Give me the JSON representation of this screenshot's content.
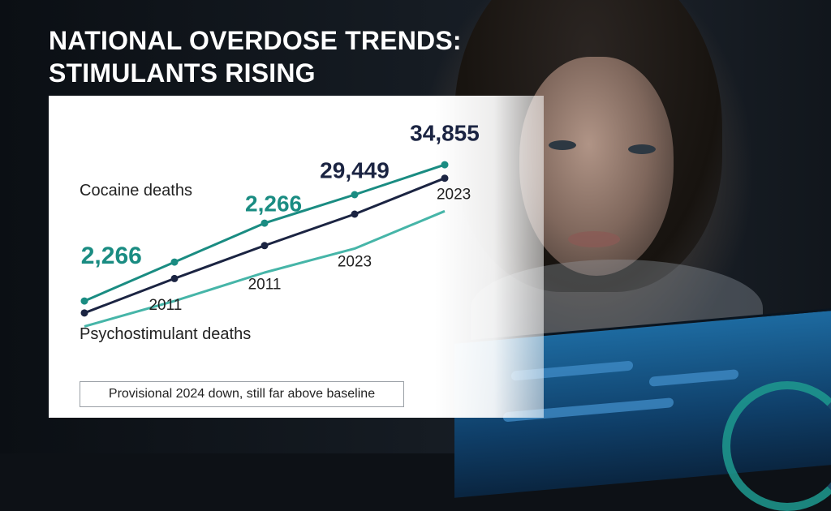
{
  "title_line1": "NATIONAL OVERDOSE TRENDS:",
  "title_line2": "STIMULANTS RISING",
  "chart_data": {
    "type": "line",
    "title": "NATIONAL OVERDOSE TRENDS: STIMULANTS RISING",
    "x": [
      0,
      1,
      2,
      3,
      4
    ],
    "series": [
      {
        "name": "Cocaine deaths",
        "color": "#1a8c82",
        "values": [
          0.0,
          0.26,
          0.52,
          0.71,
          0.91
        ],
        "markers": true
      },
      {
        "name": "",
        "color": "#1b2442",
        "values": [
          -0.08,
          0.15,
          0.37,
          0.58,
          0.82
        ],
        "markers": true
      },
      {
        "name": "Psychostimulant deaths",
        "color": "#46b5a8",
        "values": [
          -0.17,
          0.0,
          0.19,
          0.35,
          0.6
        ],
        "markers": false
      }
    ],
    "annotations": [
      {
        "text": "2,266",
        "color": "#1a8c82",
        "size": 30,
        "weight": "bold",
        "x": 0.3,
        "y": 0.25
      },
      {
        "text": "2,266",
        "color": "#1a8c82",
        "size": 28,
        "weight": "bold",
        "x": 2.1,
        "y": 0.6
      },
      {
        "text": "29,449",
        "color": "#1b2442",
        "size": 28,
        "weight": "bold",
        "x": 3.0,
        "y": 0.82
      },
      {
        "text": "34,855",
        "color": "#1b2442",
        "size": 28,
        "weight": "bold",
        "x": 4.0,
        "y": 1.07
      },
      {
        "text": "2011",
        "color": "#222222",
        "size": 19,
        "weight": "normal",
        "x": 0.9,
        "y": -0.06
      },
      {
        "text": "2011",
        "color": "#222222",
        "size": 19,
        "weight": "normal",
        "x": 2.0,
        "y": 0.08
      },
      {
        "text": "2023",
        "color": "#222222",
        "size": 19,
        "weight": "normal",
        "x": 3.0,
        "y": 0.23
      },
      {
        "text": "2023",
        "color": "#222222",
        "size": 19,
        "weight": "normal",
        "x": 4.1,
        "y": 0.68
      }
    ],
    "legend": [
      "Cocaine deaths",
      "Psychostimulant deaths"
    ],
    "grid": false
  },
  "footnote": "Provisional 2024 down, still far above baseline"
}
